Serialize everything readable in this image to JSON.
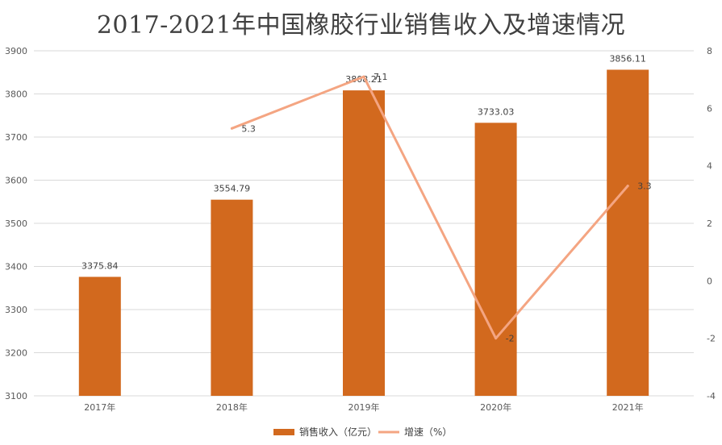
{
  "chart_data": {
    "type": "bar+line",
    "title": "2017-2021年中国橡胶行业销售收入及增速情况",
    "categories": [
      "2017年",
      "2018年",
      "2019年",
      "2020年",
      "2021年"
    ],
    "series": [
      {
        "name": "销售收入（亿元）",
        "type": "bar",
        "axis": "left",
        "color": "#D2691E",
        "values": [
          3375.84,
          3554.79,
          3808.21,
          3733.03,
          3856.11
        ],
        "labels": [
          "3375.84",
          "3554.79",
          "3808.21",
          "3733.03",
          "3856.11"
        ]
      },
      {
        "name": "增速（%）",
        "type": "line",
        "axis": "right",
        "color": "#F4A582",
        "values": [
          null,
          5.3,
          7.1,
          -2,
          3.3
        ],
        "labels": [
          "",
          "5.3",
          "7.1",
          "-2",
          "3.3"
        ]
      }
    ],
    "y_left": {
      "min": 3100,
      "max": 3900,
      "step": 100,
      "ticks": [
        "3100",
        "3200",
        "3300",
        "3400",
        "3500",
        "3600",
        "3700",
        "3800",
        "3900"
      ]
    },
    "y_right": {
      "min": -4,
      "max": 8,
      "step": 2,
      "ticks": [
        "-4",
        "-2",
        "0",
        "2",
        "4",
        "6",
        "8"
      ]
    },
    "grid": true,
    "legend_position": "bottom"
  }
}
